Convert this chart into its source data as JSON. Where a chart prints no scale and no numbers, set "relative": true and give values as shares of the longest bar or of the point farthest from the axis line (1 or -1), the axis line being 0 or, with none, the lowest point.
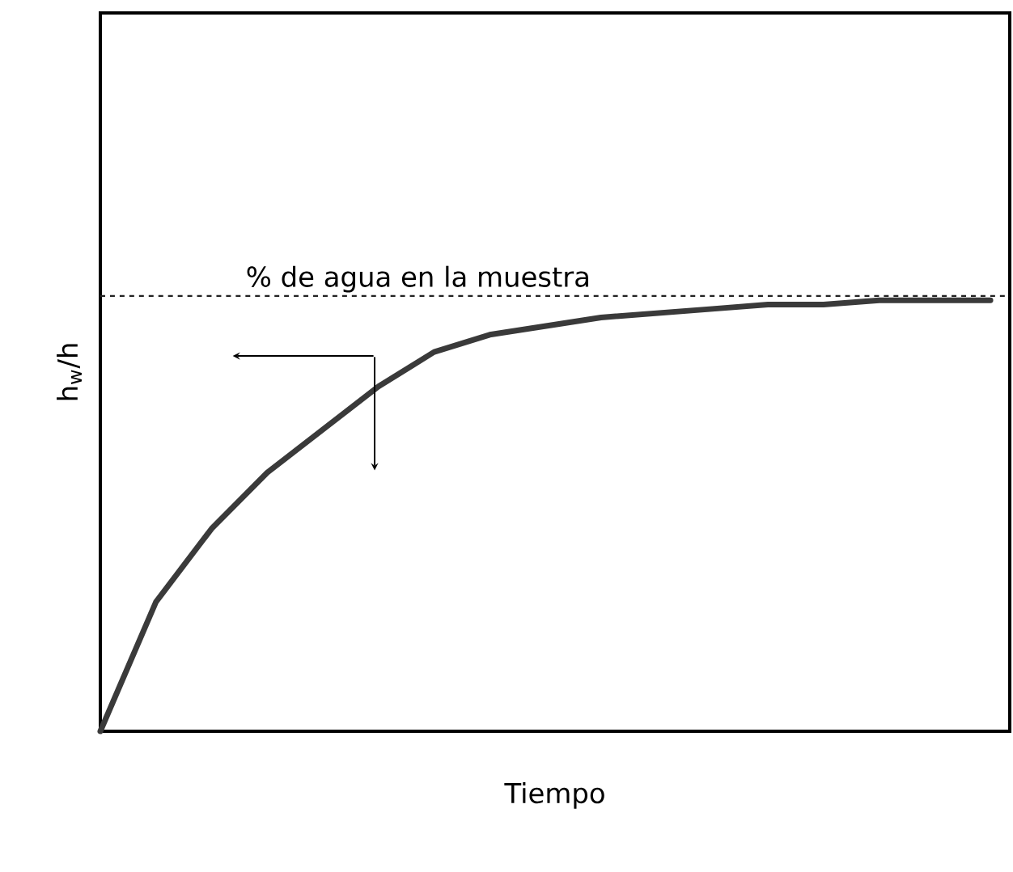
{
  "chart_data": {
    "type": "line",
    "relative": true,
    "xlabel": "Tiempo",
    "ylabel": "h$_{w}$/h",
    "categories": [
      null,
      null,
      null,
      null,
      null,
      null,
      null,
      null,
      null,
      null,
      null,
      null,
      null,
      null,
      null,
      null,
      null
    ],
    "series": [
      {
        "color": "#3a3a3a",
        "values": [
          0,
          0.3,
          0.47,
          0.6,
          0.7,
          0.8,
          0.88,
          0.92,
          0.94,
          0.96,
          0.97,
          0.98,
          0.99,
          0.99,
          1.0,
          1.0,
          1.0
        ]
      }
    ],
    "ref_lines": [
      {
        "axis": "y",
        "value": 1.01,
        "label": "% de agua en la muestra",
        "color": "#222222",
        "line_style": "dashed"
      }
    ]
  }
}
